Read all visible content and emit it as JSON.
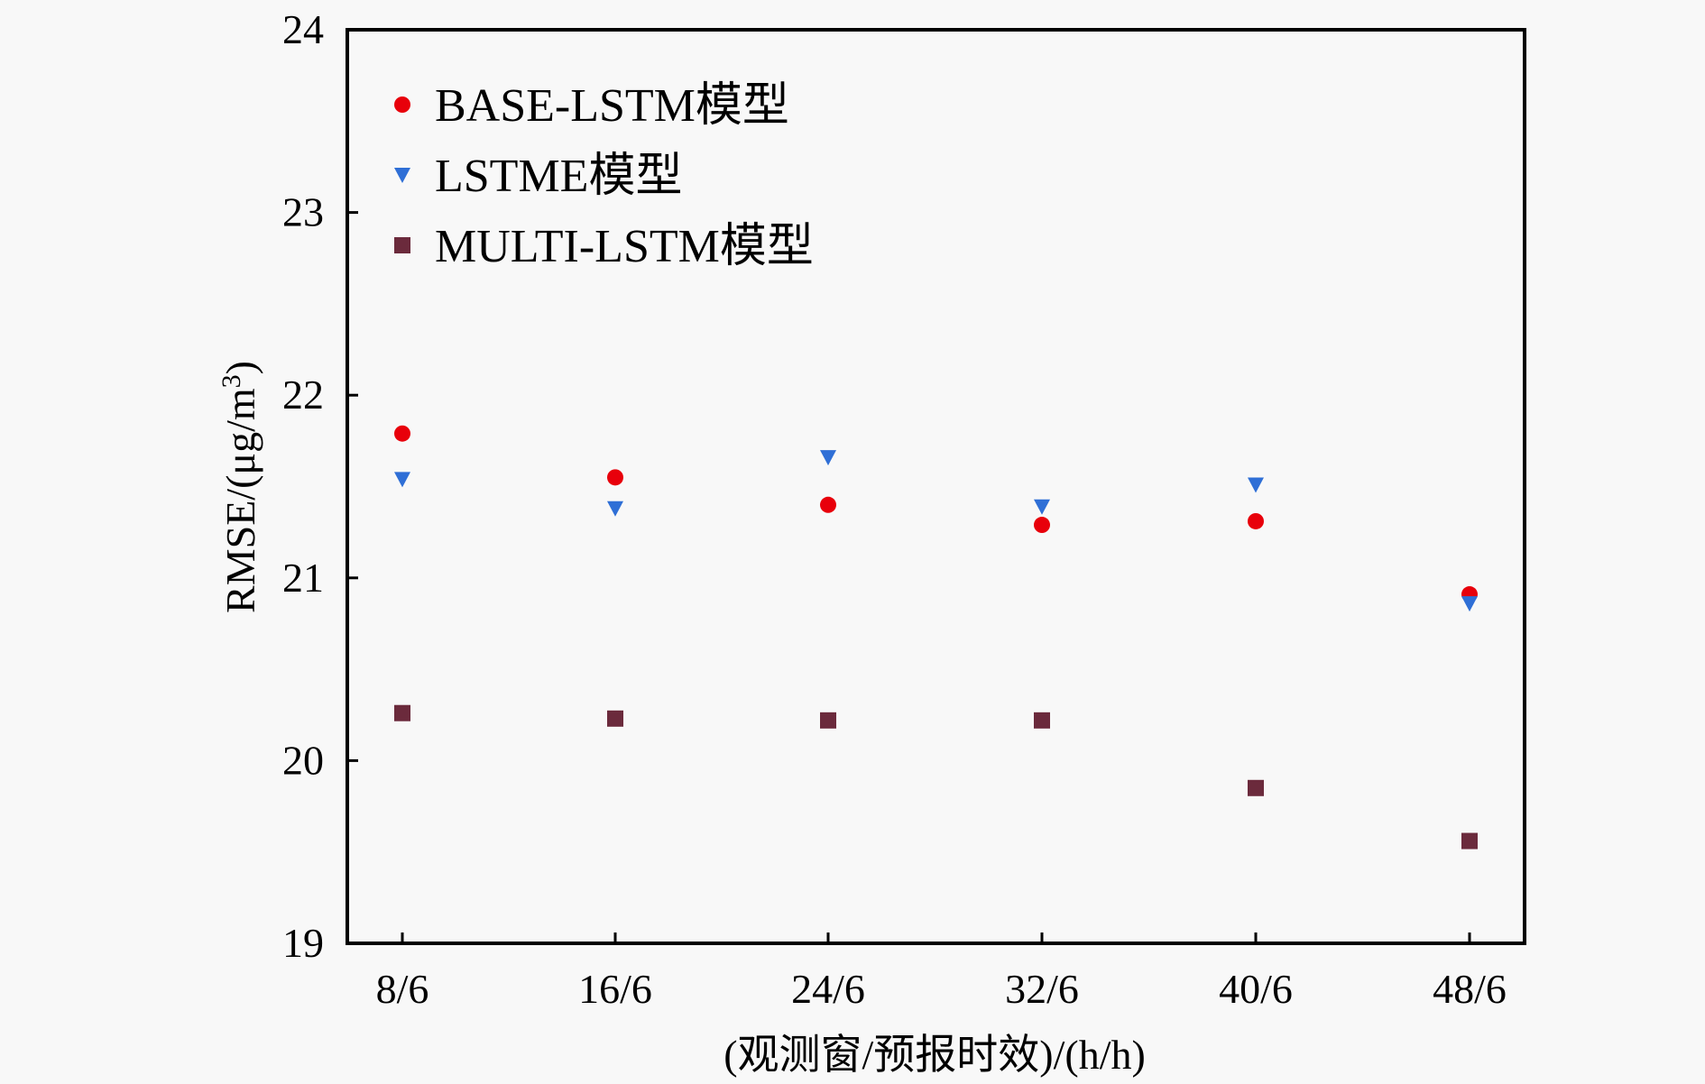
{
  "chart_data": {
    "type": "scatter",
    "title": "",
    "xlabel": "(观测窗/预报时效)/(h/h)",
    "ylabel": "RMSE/(μg/m³)",
    "ylabel_parts": {
      "main": "RMSE/(μg/m",
      "sup": "3",
      "close": ")"
    },
    "categories": [
      "8/6",
      "16/6",
      "24/6",
      "32/6",
      "40/6",
      "48/6"
    ],
    "ylim": [
      19,
      24
    ],
    "yticks": [
      19,
      20,
      21,
      22,
      23,
      24
    ],
    "grid": false,
    "legend_position": "upper-left",
    "series": [
      {
        "name": "BASE-LSTM模型",
        "marker": "circle",
        "color": "#e8000b",
        "values": [
          21.79,
          21.55,
          21.4,
          21.29,
          21.31,
          20.91
        ]
      },
      {
        "name": "LSTME模型",
        "marker": "triangle-down",
        "color": "#2f6fd6",
        "values": [
          21.54,
          21.38,
          21.66,
          21.39,
          21.51,
          20.86
        ]
      },
      {
        "name": "MULTI-LSTM模型",
        "marker": "square",
        "color": "#6b2a3c",
        "values": [
          20.26,
          20.23,
          20.22,
          20.22,
          19.85,
          19.56
        ]
      }
    ]
  },
  "legend": {
    "items": [
      "BASE-LSTM模型",
      "LSTME模型",
      "MULTI-LSTM模型"
    ]
  }
}
